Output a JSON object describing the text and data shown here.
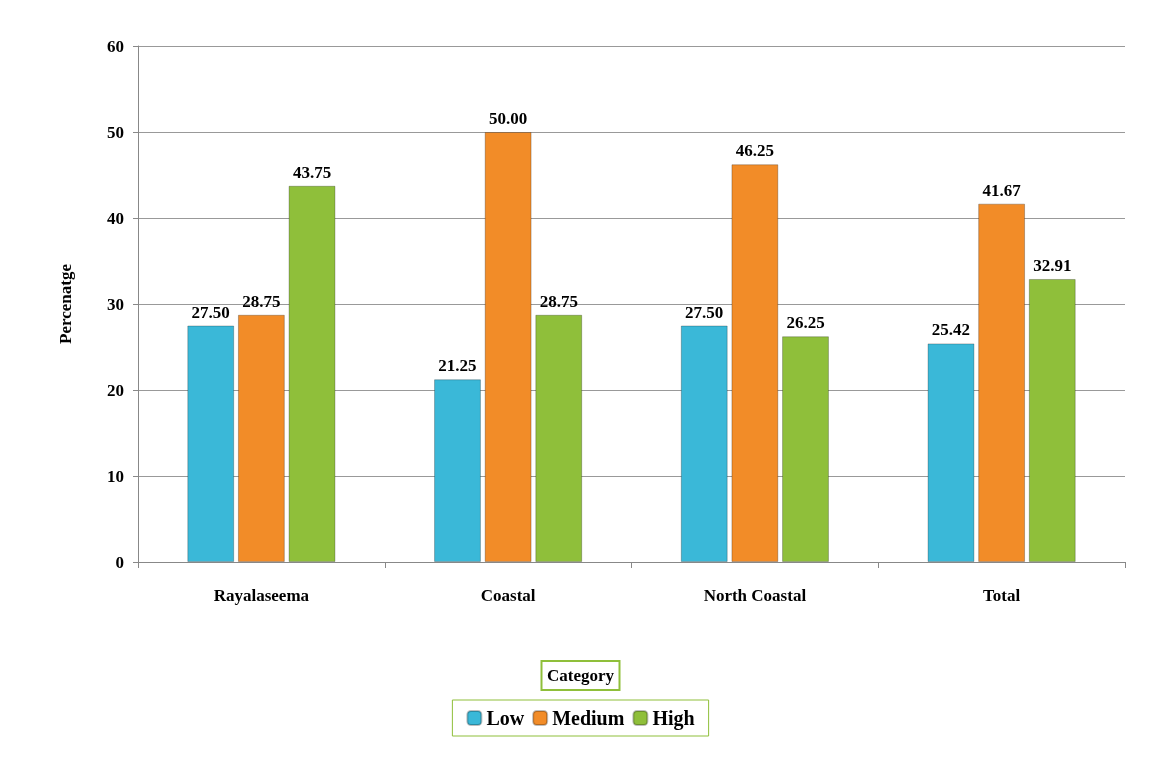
{
  "chart_data": {
    "type": "bar",
    "ylabel": "Percenatge",
    "legend_title": "Category",
    "legend": "bottom",
    "grid": "y",
    "categories": [
      "Rayalaseema",
      "Coastal",
      "North Coastal",
      "Total"
    ],
    "ylim": [
      0,
      60
    ],
    "yticks": [
      0,
      10,
      20,
      30,
      40,
      50,
      60
    ],
    "series": [
      {
        "name": "Low",
        "color": "#3ab8d8",
        "values": [
          27.5,
          21.25,
          27.5,
          25.42
        ],
        "value_labels": [
          "27.50",
          "21.25",
          "27.50",
          "25.42"
        ]
      },
      {
        "name": "Medium",
        "color": "#f28c28",
        "values": [
          28.75,
          50,
          46.25,
          41.67
        ],
        "value_labels": [
          "28.75",
          "50.00",
          "46.25",
          "41.67"
        ]
      },
      {
        "name": "High",
        "color": "#8fbf3a",
        "values": [
          43.75,
          28.75,
          26.25,
          32.91
        ],
        "value_labels": [
          "43.75",
          "28.75",
          "26.25",
          "32.91"
        ]
      }
    ]
  }
}
